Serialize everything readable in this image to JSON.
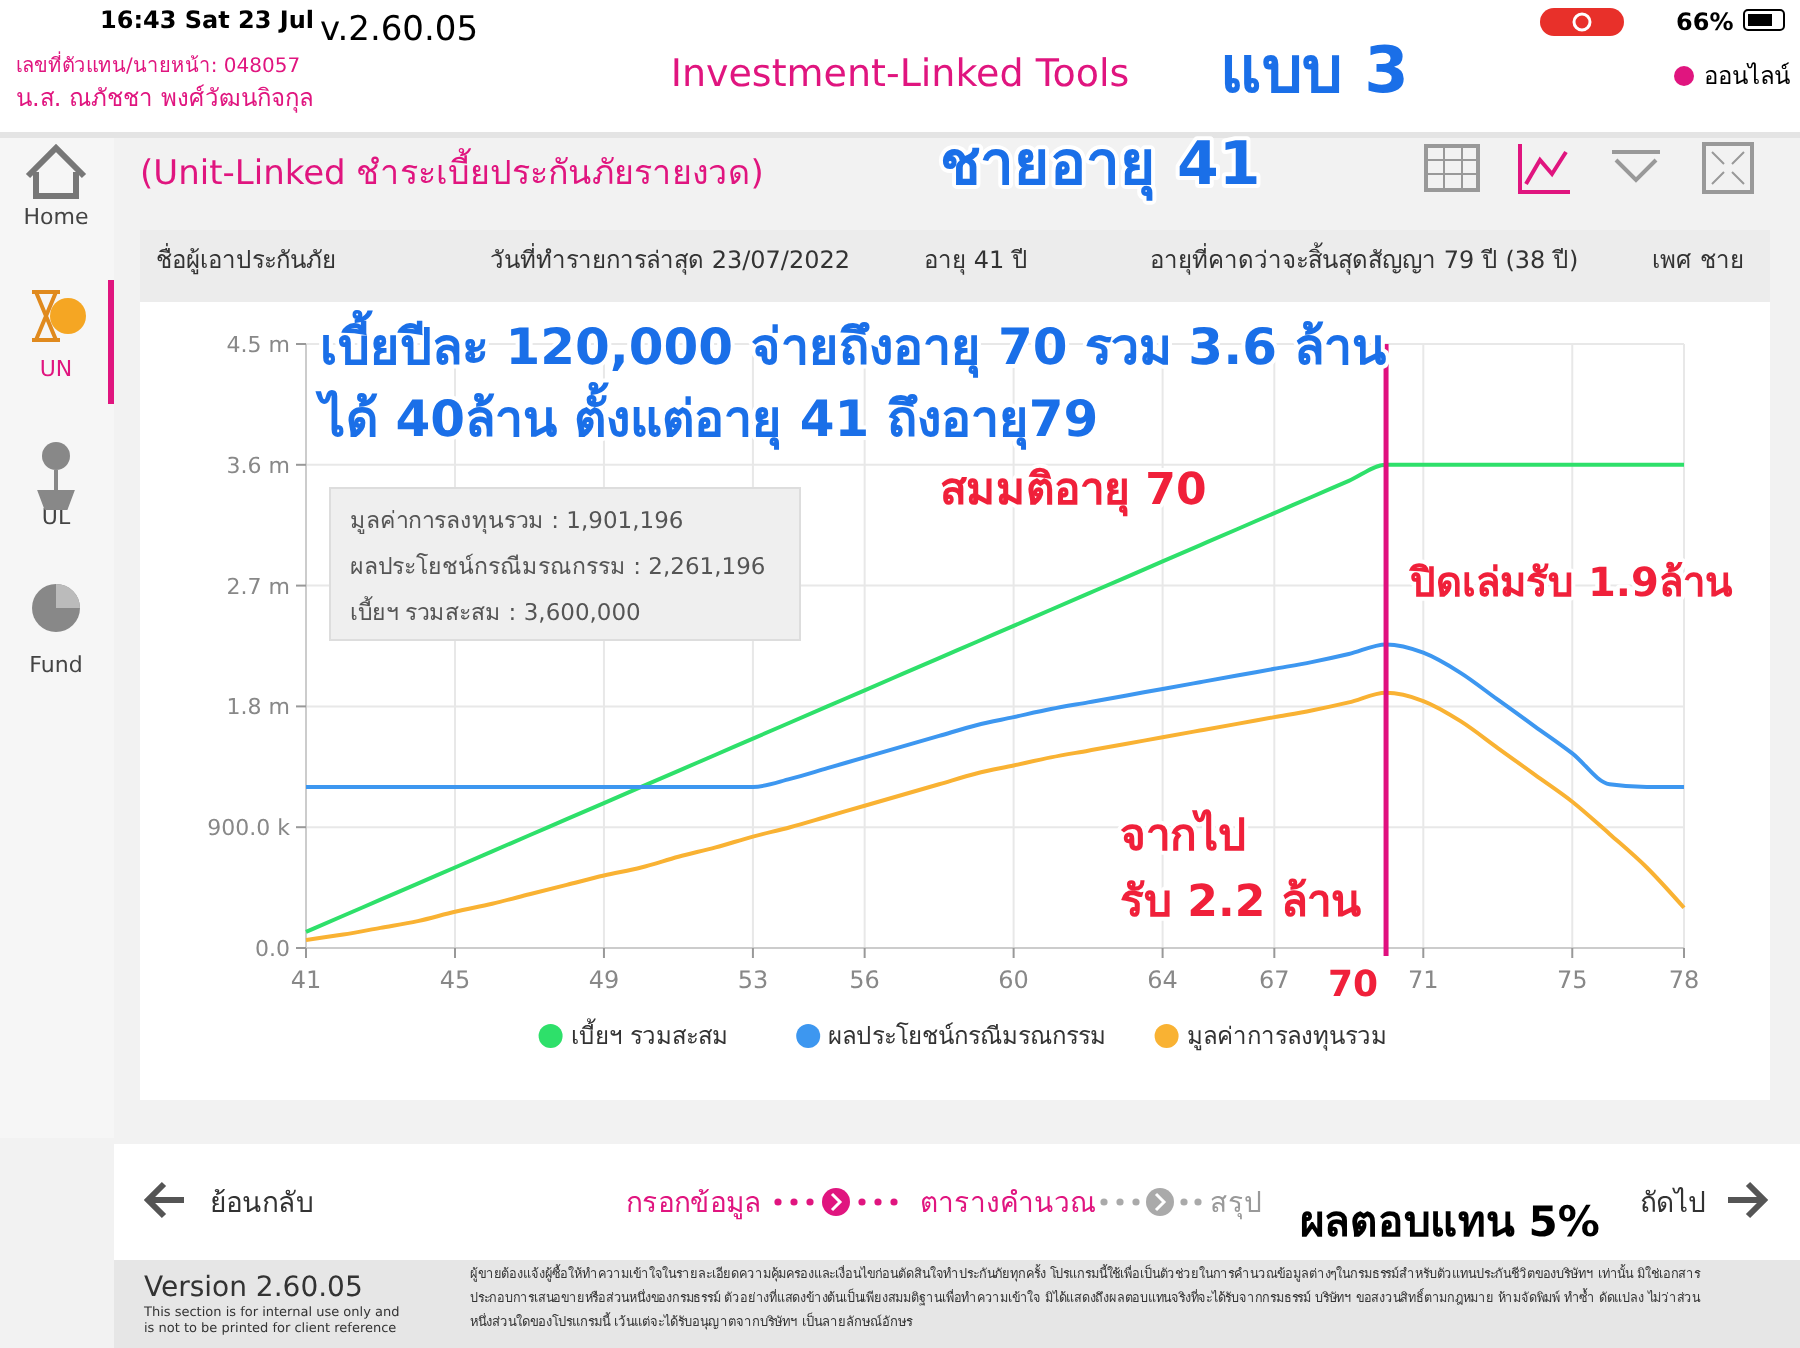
{
  "chart_data": {
    "type": "line",
    "title": "(Unit-Linked ชำระเบี้ยประกันภัยรายงวด)",
    "x": [
      41,
      42,
      43,
      44,
      45,
      46,
      47,
      48,
      49,
      50,
      51,
      52,
      53,
      54,
      55,
      56,
      57,
      58,
      59,
      60,
      61,
      62,
      63,
      64,
      65,
      66,
      67,
      68,
      69,
      70,
      71,
      72,
      73,
      74,
      75,
      76,
      77,
      78
    ],
    "series": [
      {
        "name": "เบี้ยฯ รวมสะสม",
        "color": "#2ee06a",
        "values": [
          120000,
          240000,
          360000,
          480000,
          600000,
          720000,
          840000,
          960000,
          1080000,
          1200000,
          1320000,
          1440000,
          1560000,
          1680000,
          1800000,
          1920000,
          2040000,
          2160000,
          2280000,
          2400000,
          2520000,
          2640000,
          2760000,
          2880000,
          3000000,
          3120000,
          3240000,
          3360000,
          3480000,
          3600000,
          3600000,
          3600000,
          3600000,
          3600000,
          3600000,
          3600000,
          3600000,
          3600000
        ]
      },
      {
        "name": "ผลประโยชน์กรณีมรณกรรม",
        "color": "#3d97f0",
        "values": [
          1200000,
          1200000,
          1200000,
          1200000,
          1200000,
          1200000,
          1200000,
          1200000,
          1200000,
          1200000,
          1200000,
          1200000,
          1200000,
          1260000,
          1340000,
          1420000,
          1500000,
          1580000,
          1660000,
          1720000,
          1780000,
          1830000,
          1880000,
          1930000,
          1980000,
          2030000,
          2080000,
          2130000,
          2190000,
          2261196,
          2200000,
          2050000,
          1850000,
          1650000,
          1450000,
          1220000,
          1200000,
          1200000
        ]
      },
      {
        "name": "มูลค่าการลงทุนรวม",
        "color": "#f9b233",
        "values": [
          60000,
          100000,
          150000,
          200000,
          270000,
          330000,
          400000,
          470000,
          540000,
          600000,
          680000,
          750000,
          830000,
          900000,
          980000,
          1060000,
          1140000,
          1220000,
          1300000,
          1360000,
          1420000,
          1470000,
          1520000,
          1570000,
          1620000,
          1670000,
          1720000,
          1770000,
          1830000,
          1901196,
          1840000,
          1690000,
          1490000,
          1290000,
          1090000,
          850000,
          600000,
          300000
        ]
      }
    ],
    "xlim": [
      41,
      78
    ],
    "xticks": [
      41,
      45,
      49,
      53,
      56,
      60,
      64,
      67,
      71,
      75,
      78
    ],
    "ylim": [
      0,
      4500000
    ],
    "yticks": [
      {
        "value": 0,
        "label": "0.0"
      },
      {
        "value": 900000,
        "label": "900.0 k"
      },
      {
        "value": 1800000,
        "label": "1.8 m"
      },
      {
        "value": 2700000,
        "label": "2.7 m"
      },
      {
        "value": 3600000,
        "label": "3.6 m"
      },
      {
        "value": 4500000,
        "label": "4.5 m"
      }
    ],
    "grid": true,
    "legend": "bottom",
    "marker": "none",
    "line_style": "solid",
    "ref_lines": [
      {
        "axis": "x",
        "value": 70,
        "label": "70",
        "color": "#e0107f"
      }
    ],
    "annotations": [
      "16:43  Sat 23 Jul",
      "v.2.60.05",
      "66%",
      "เลขที่ตัวแทน/นายหน้า: 048057",
      "น.ส. ณภัชชา  พงศ์วัฒนกิจกุล",
      "Investment-Linked Tools",
      "แบบ 3",
      "ออนไลน์",
      "Home",
      "UN",
      "UL",
      "Fund",
      "ชายอายุ 41",
      "ชื่อผู้เอาประกันภัย",
      "วันที่ทำรายการล่าสุด 23/07/2022",
      "อายุ 41 ปี",
      "อายุที่คาดว่าจะสิ้นสุดสัญญา 79 ปี (38 ปี)",
      "เพศ ชาย",
      "เบี้ยปีละ 120,000 จ่ายถึงอายุ 70 รวม 3.6 ล้าน",
      "ได้ 40ล้าน ตั้งแต่อายุ 41 ถึงอายุ79",
      "สมมติอายุ 70",
      "มูลค่าการลงทุนรวม : 1,901,196",
      "ผลประโยชน์กรณีมรณกรรม : 2,261,196",
      "เบี้ยฯ รวมสะสม : 3,600,000",
      "ปิดเล่มรับ 1.9ล้าน",
      "จากไป",
      "รับ 2.2 ล้าน",
      "ย้อนกลับ",
      "กรอกข้อมูล",
      "ตารางคำนวณ",
      "สรุป",
      "ผลตอบแทน 5%",
      "ถัดไป",
      "Version 2.60.05",
      "This section is for internal use only and",
      "is not to be printed for client reference",
      "ผู้ขายต้องแจ้งผู้ซื้อให้ทำความเข้าใจในรายละเอียดความคุ้มครองและเงื่อนไขก่อนตัดสินใจทำประกันภัยทุกครั้ง โปรแกรมนี้ใช้เพื่อเป็นตัวช่วยในการคำนวณข้อมูลต่างๆในกรมธรรม์สำหรับตัวแทนประกันชีวิตของบริษัทฯ เท่านั้น มิใช่เอกสาร",
      "ประกอบการเสนอขายหรือส่วนหนึ่งของกรมธรรม์ ตัวอย่างที่แสดงข้างต้นเป็นเพียงสมมติฐานเพื่อทำความเข้าใจ มิได้แสดงถึงผลตอบแทนจริงที่จะได้รับจากกรมธรรม์ บริษัทฯ ขอสงวนสิทธิ์ตามกฎหมาย ห้ามจัดพิมพ์ ทำซ้ำ ดัดแปลง ไม่ว่าส่วน",
      "หนึ่งส่วนใดของโปรแกรมนี้ เว้นแต่จะได้รับอนุญาตจากบริษัทฯ เป็นลายลักษณ์อักษร"
    ]
  }
}
